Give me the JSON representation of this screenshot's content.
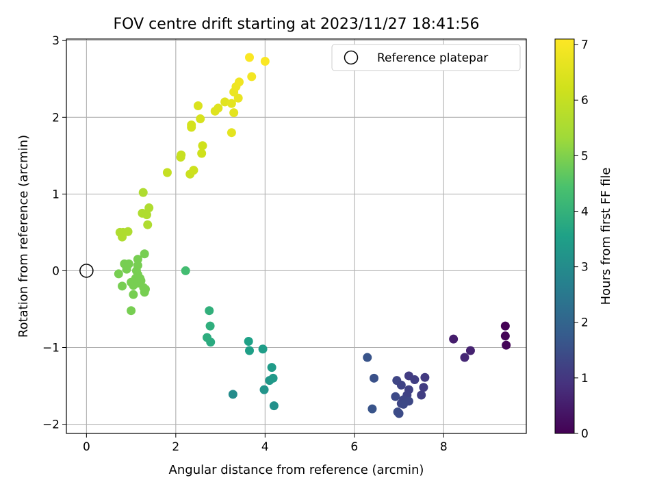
{
  "chart_data": {
    "type": "scatter",
    "title": "FOV centre drift starting at 2023/11/27 18:41:56",
    "xlabel": "Angular distance from reference (arcmin)",
    "ylabel": "Rotation from reference (arcmin)",
    "xlim": [
      -0.45,
      9.85
    ],
    "ylim": [
      -2.12,
      3.02
    ],
    "xticks": [
      "0",
      "2",
      "4",
      "6",
      "8"
    ],
    "yticks": [
      "−2",
      "−1",
      "0",
      "1",
      "2",
      "3"
    ],
    "grid": true,
    "legend": {
      "placement": "top-right",
      "entries": [
        "Reference platepar"
      ]
    },
    "reference_point": {
      "x": 0,
      "y": 0,
      "label": "Reference platepar"
    },
    "colorbar": {
      "label": "Hours from first FF file",
      "range": [
        0,
        7.1
      ],
      "ticks": [
        "0",
        "1",
        "2",
        "3",
        "4",
        "5",
        "6",
        "7"
      ],
      "colormap": "viridis"
    },
    "points": [
      [
        9.38,
        -0.72,
        0.02
      ],
      [
        9.38,
        -0.85,
        0.05
      ],
      [
        9.4,
        -0.97,
        0.08
      ],
      [
        8.22,
        -0.89,
        0.5
      ],
      [
        8.6,
        -1.04,
        0.6
      ],
      [
        8.47,
        -1.13,
        0.7
      ],
      [
        6.29,
        -1.13,
        1.6
      ],
      [
        6.44,
        -1.4,
        1.55
      ],
      [
        6.4,
        -1.8,
        1.6
      ],
      [
        6.95,
        -1.43,
        1.3
      ],
      [
        7.05,
        -1.49,
        1.25
      ],
      [
        7.22,
        -1.37,
        1.1
      ],
      [
        7.35,
        -1.42,
        1.15
      ],
      [
        7.58,
        -1.39,
        1.05
      ],
      [
        7.55,
        -1.52,
        1.1
      ],
      [
        7.5,
        -1.62,
        1.15
      ],
      [
        7.22,
        -1.55,
        1.2
      ],
      [
        7.18,
        -1.62,
        1.22
      ],
      [
        7.1,
        -1.68,
        1.3
      ],
      [
        7.22,
        -1.7,
        1.35
      ],
      [
        7.05,
        -1.73,
        1.32
      ],
      [
        6.92,
        -1.64,
        1.4
      ],
      [
        6.97,
        -1.84,
        1.45
      ],
      [
        7.0,
        -1.86,
        1.42
      ],
      [
        7.1,
        -1.74,
        1.38
      ],
      [
        3.28,
        -1.61,
        3.0
      ],
      [
        4.2,
        -1.76,
        3.1
      ],
      [
        3.98,
        -1.55,
        3.2
      ],
      [
        4.1,
        -1.43,
        3.3
      ],
      [
        4.18,
        -1.4,
        3.35
      ],
      [
        4.15,
        -1.26,
        3.4
      ],
      [
        3.65,
        -1.04,
        3.5
      ],
      [
        3.63,
        -0.92,
        3.55
      ],
      [
        3.95,
        -1.02,
        3.45
      ],
      [
        2.78,
        -0.93,
        3.8
      ],
      [
        2.7,
        -0.87,
        3.85
      ],
      [
        2.77,
        -0.72,
        3.9
      ],
      [
        2.75,
        -0.52,
        3.95
      ],
      [
        2.22,
        0.0,
        4.3
      ],
      [
        1.0,
        -0.52,
        4.9
      ],
      [
        1.05,
        -0.31,
        4.9
      ],
      [
        1.3,
        -0.28,
        4.9
      ],
      [
        1.32,
        -0.24,
        4.9
      ],
      [
        1.28,
        -0.22,
        4.9
      ],
      [
        0.8,
        -0.2,
        4.9
      ],
      [
        1.05,
        -0.19,
        4.9
      ],
      [
        1.15,
        -0.16,
        4.9
      ],
      [
        1.22,
        -0.13,
        4.9
      ],
      [
        1.0,
        -0.15,
        4.9
      ],
      [
        1.1,
        -0.1,
        4.9
      ],
      [
        1.2,
        -0.1,
        4.9
      ],
      [
        1.15,
        -0.05,
        4.9
      ],
      [
        1.12,
        0.0,
        4.9
      ],
      [
        0.72,
        -0.04,
        4.9
      ],
      [
        0.9,
        0.02,
        4.9
      ],
      [
        1.15,
        0.07,
        4.9
      ],
      [
        0.85,
        0.09,
        4.9
      ],
      [
        0.95,
        0.09,
        4.9
      ],
      [
        1.15,
        0.15,
        4.9
      ],
      [
        1.3,
        0.22,
        4.9
      ],
      [
        0.8,
        0.44,
        5.6
      ],
      [
        0.75,
        0.5,
        5.6
      ],
      [
        0.82,
        0.5,
        5.6
      ],
      [
        0.93,
        0.51,
        5.6
      ],
      [
        1.37,
        0.6,
        5.6
      ],
      [
        1.25,
        0.75,
        5.6
      ],
      [
        1.35,
        0.73,
        5.6
      ],
      [
        1.4,
        0.82,
        5.6
      ],
      [
        1.27,
        1.02,
        5.6
      ],
      [
        1.81,
        1.28,
        6.0
      ],
      [
        2.11,
        1.48,
        6.05
      ],
      [
        2.12,
        1.51,
        6.05
      ],
      [
        2.32,
        1.26,
        6.1
      ],
      [
        2.4,
        1.31,
        6.15
      ],
      [
        2.58,
        1.53,
        6.2
      ],
      [
        2.6,
        1.63,
        6.2
      ],
      [
        2.35,
        1.87,
        6.3
      ],
      [
        2.35,
        1.9,
        6.3
      ],
      [
        2.55,
        1.98,
        6.35
      ],
      [
        2.5,
        2.15,
        6.4
      ],
      [
        2.88,
        2.08,
        6.5
      ],
      [
        2.95,
        2.12,
        6.5
      ],
      [
        3.1,
        2.2,
        6.55
      ],
      [
        3.25,
        2.18,
        6.6
      ],
      [
        3.3,
        2.06,
        6.6
      ],
      [
        3.25,
        1.8,
        6.6
      ],
      [
        3.4,
        2.25,
        6.7
      ],
      [
        3.3,
        2.33,
        6.75
      ],
      [
        3.35,
        2.4,
        6.8
      ],
      [
        3.42,
        2.46,
        6.85
      ],
      [
        3.7,
        2.53,
        6.9
      ],
      [
        3.65,
        2.78,
        7.05
      ],
      [
        4.0,
        2.73,
        7.05
      ]
    ]
  }
}
